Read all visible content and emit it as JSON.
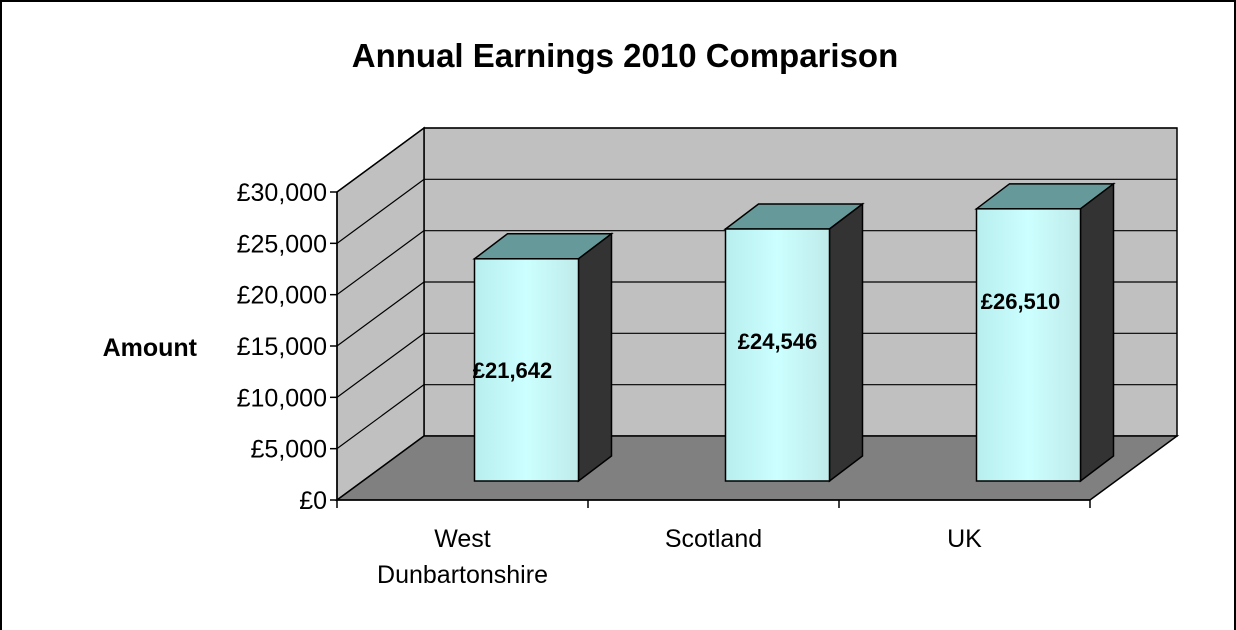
{
  "chart_data": {
    "type": "bar",
    "title": "Annual Earnings 2010 Comparison",
    "xlabel": "",
    "ylabel": "Amount",
    "categories": [
      "West Dunbartonshire",
      "Scotland",
      "UK"
    ],
    "category_label_lines": [
      [
        "West",
        "Dunbartonshire"
      ],
      [
        "Scotland"
      ],
      [
        "UK"
      ]
    ],
    "values": [
      21642,
      24546,
      26510
    ],
    "data_labels": [
      "£21,642",
      "£24,546",
      "£26,510"
    ],
    "ylim": [
      0,
      30000
    ],
    "y_ticks": [
      0,
      5000,
      10000,
      15000,
      20000,
      25000,
      30000
    ],
    "y_tick_labels": [
      "£0",
      "£5,000",
      "£10,000",
      "£15,000",
      "£20,000",
      "£25,000",
      "£30,000"
    ],
    "grid": true,
    "legend": "none",
    "style": "3d-clustered-column",
    "colors": {
      "bar_front": "#ccffff",
      "bar_top": "#669999",
      "bar_side": "#333333",
      "back_wall": "#c0c0c0",
      "side_wall": "#c0c0c0",
      "floor": "#808080",
      "gridline": "#000000"
    }
  }
}
